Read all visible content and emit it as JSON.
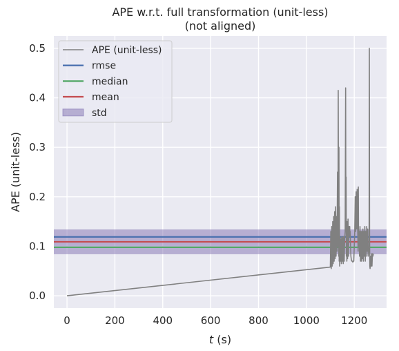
{
  "chart_data": {
    "type": "line",
    "title_lines": [
      "APE w.r.t. full transformation (unit-less)",
      "(not aligned)"
    ],
    "xlabel_var": "t",
    "xlabel_unit": " (s)",
    "ylabel": "APE (unit-less)",
    "xlim": [
      -55,
      1335
    ],
    "ylim": [
      -0.025,
      0.525
    ],
    "xticks": [
      0,
      200,
      400,
      600,
      800,
      1000,
      1200
    ],
    "xtick_labels": [
      "0",
      "200",
      "400",
      "600",
      "800",
      "1000",
      "1200"
    ],
    "yticks": [
      0.0,
      0.1,
      0.2,
      0.3,
      0.4,
      0.5
    ],
    "ytick_labels": [
      "0.0",
      "0.1",
      "0.2",
      "0.3",
      "0.4",
      "0.5"
    ],
    "grid": true,
    "legend_position": "top-left",
    "stats": {
      "rmse": 0.119,
      "median": 0.098,
      "mean": 0.109,
      "std_band": [
        0.084,
        0.134
      ]
    },
    "legend": [
      {
        "label": "APE (unit-less)",
        "kind": "line",
        "color": "#808080"
      },
      {
        "label": "rmse",
        "kind": "line",
        "color": "#4c72b0"
      },
      {
        "label": "median",
        "kind": "line",
        "color": "#55a868"
      },
      {
        "label": "mean",
        "kind": "line",
        "color": "#c44e52"
      },
      {
        "label": "std",
        "kind": "patch",
        "color": "#8172b2"
      }
    ],
    "series": [
      {
        "color": "#808080",
        "x": [
          0,
          1100,
          1102,
          1104,
          1106,
          1108,
          1110,
          1112,
          1114,
          1116,
          1118,
          1120,
          1122,
          1124,
          1126,
          1128,
          1130,
          1132,
          1133,
          1134,
          1135,
          1136,
          1137,
          1138,
          1139,
          1140,
          1142,
          1144,
          1146,
          1148,
          1150,
          1152,
          1154,
          1156,
          1158,
          1160,
          1162,
          1164,
          1165,
          1166,
          1167,
          1168,
          1169,
          1170,
          1172,
          1174,
          1176,
          1178,
          1180,
          1181,
          1182,
          1183,
          1184,
          1186,
          1188,
          1190,
          1192,
          1194,
          1196,
          1198,
          1200,
          1202,
          1204,
          1206,
          1208,
          1210,
          1212,
          1214,
          1216,
          1217,
          1218,
          1220,
          1222,
          1224,
          1226,
          1228,
          1230,
          1232,
          1234,
          1236,
          1238,
          1240,
          1242,
          1244,
          1246,
          1248,
          1250,
          1252,
          1254,
          1256,
          1258,
          1260,
          1262,
          1263,
          1264,
          1265,
          1266,
          1267,
          1268,
          1270,
          1272,
          1274,
          1276,
          1278,
          1280
        ],
        "y": [
          0.0,
          0.058,
          0.13,
          0.055,
          0.14,
          0.06,
          0.15,
          0.065,
          0.16,
          0.07,
          0.17,
          0.075,
          0.18,
          0.08,
          0.16,
          0.09,
          0.25,
          0.1,
          0.415,
          0.2,
          0.08,
          0.3,
          0.07,
          0.18,
          0.06,
          0.12,
          0.07,
          0.115,
          0.065,
          0.12,
          0.07,
          0.118,
          0.065,
          0.12,
          0.07,
          0.115,
          0.13,
          0.42,
          0.16,
          0.24,
          0.08,
          0.12,
          0.07,
          0.15,
          0.075,
          0.155,
          0.08,
          0.14,
          0.13,
          0.14,
          0.12,
          0.13,
          0.11,
          0.08,
          0.072,
          0.07,
          0.07,
          0.068,
          0.07,
          0.07,
          0.1,
          0.13,
          0.2,
          0.13,
          0.21,
          0.135,
          0.215,
          0.14,
          0.09,
          0.22,
          0.1,
          0.13,
          0.08,
          0.14,
          0.07,
          0.13,
          0.07,
          0.13,
          0.075,
          0.135,
          0.07,
          0.13,
          0.08,
          0.14,
          0.07,
          0.13,
          0.08,
          0.14,
          0.09,
          0.135,
          0.08,
          0.09,
          0.1,
          0.5,
          0.12,
          0.06,
          0.055,
          0.06,
          0.08,
          0.06,
          0.085,
          0.06,
          0.085,
          0.08,
          0.085
        ]
      }
    ]
  }
}
